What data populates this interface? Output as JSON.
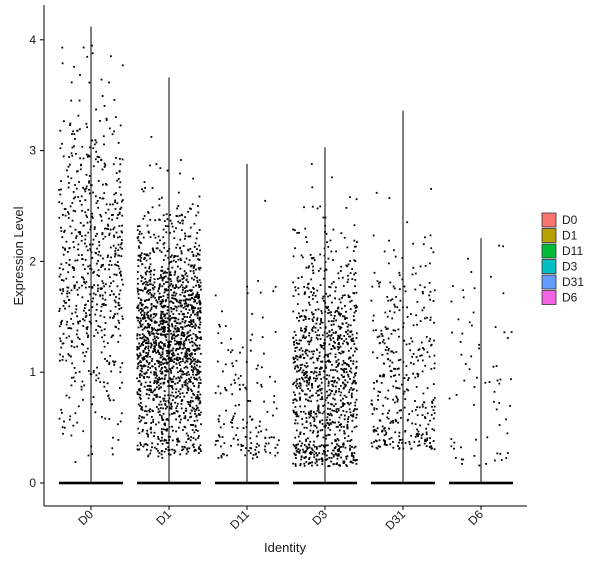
{
  "chart_data": {
    "type": "violin-jitter",
    "xlabel": "Identity",
    "ylabel": "Expression Level",
    "ylim": [
      -0.2,
      4.2
    ],
    "yticks": [
      0,
      1,
      2,
      3,
      4
    ],
    "grid": false,
    "legend_position": "right",
    "categories": [
      "D0",
      "D1",
      "D11",
      "D3",
      "D31",
      "D6"
    ],
    "colors": {
      "D0": "#F8766D",
      "D1": "#B79F00",
      "D11": "#00BA38",
      "D3": "#00BFC4",
      "D31": "#619CFF",
      "D6": "#F564E3"
    },
    "series": [
      {
        "name": "D0",
        "max": 4.12,
        "nonzero_points": 650,
        "nonzero_median": 2.0,
        "nonzero_spread": 0.75,
        "nonzero_min": 0.15
      },
      {
        "name": "D1",
        "max": 3.66,
        "nonzero_points": 1650,
        "nonzero_median": 1.3,
        "nonzero_spread": 0.55,
        "nonzero_min": 0.22
      },
      {
        "name": "D11",
        "max": 2.88,
        "nonzero_points": 160,
        "nonzero_median": 0.6,
        "nonzero_spread": 0.55,
        "nonzero_min": 0.22
      },
      {
        "name": "D3",
        "max": 3.03,
        "nonzero_points": 1050,
        "nonzero_median": 0.95,
        "nonzero_spread": 0.6,
        "nonzero_min": 0.15
      },
      {
        "name": "D31",
        "max": 3.36,
        "nonzero_points": 380,
        "nonzero_median": 0.9,
        "nonzero_spread": 0.65,
        "nonzero_min": 0.3
      },
      {
        "name": "D6",
        "max": 2.21,
        "nonzero_points": 70,
        "nonzero_median": 0.85,
        "nonzero_spread": 0.6,
        "nonzero_min": 0.15
      }
    ]
  }
}
